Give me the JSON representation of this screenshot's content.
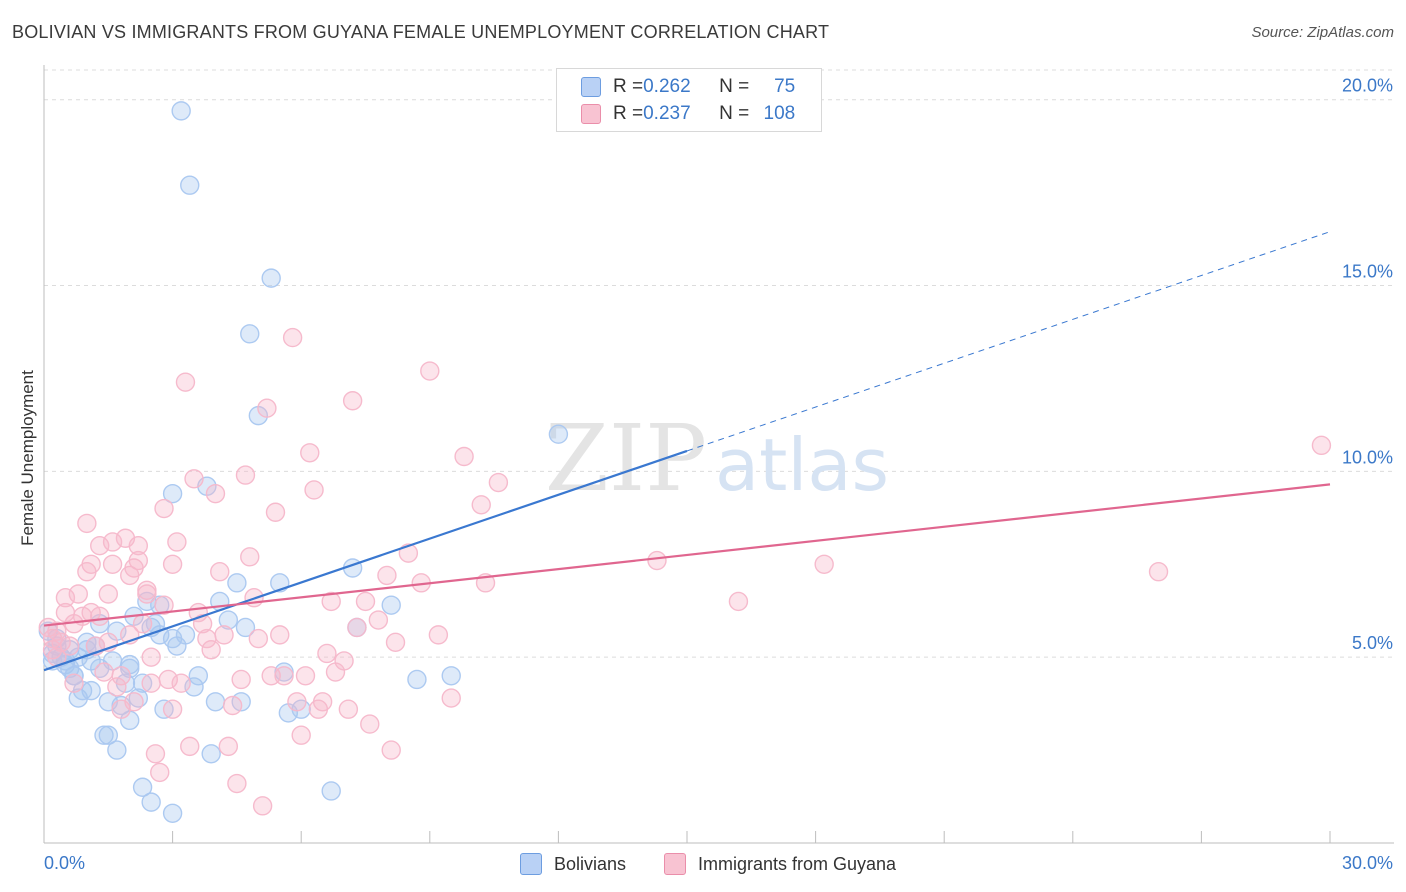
{
  "title": "BOLIVIAN VS IMMIGRANTS FROM GUYANA FEMALE UNEMPLOYMENT CORRELATION CHART",
  "source": "Source: ZipAtlas.com",
  "watermark": {
    "zip": "ZIP",
    "atlas": "atlas"
  },
  "legend_stats": [
    {
      "r_label": "R = ",
      "r_value": "0.262",
      "n_label": "N = ",
      "n_value": "75",
      "fill": "#b9d1f5",
      "stroke": "#6d9de0"
    },
    {
      "r_label": "R = ",
      "r_value": "0.237",
      "n_label": "N = ",
      "n_value": "108",
      "fill": "#f8c3d2",
      "stroke": "#ea8eaa"
    }
  ],
  "chart_data": {
    "type": "scatter",
    "title": "BOLIVIAN VS IMMIGRANTS FROM GUYANA FEMALE UNEMPLOYMENT CORRELATION CHART",
    "xlabel": "",
    "ylabel": "Female Unemployment",
    "xlim": [
      0,
      30
    ],
    "ylim": [
      0,
      20.8
    ],
    "x_tick_labels": [
      "0.0%",
      "30.0%"
    ],
    "y_ticks": [
      5,
      10,
      15,
      20
    ],
    "y_tick_labels": [
      "5.0%",
      "10.0%",
      "15.0%",
      "20.0%"
    ],
    "grid": true,
    "legend_position": "top-center",
    "series": [
      {
        "name": "Bolivians",
        "color": "#3a78d0",
        "fill": "#a9c7f0",
        "r": 0.262,
        "n": 75,
        "trend": {
          "x0": 0.0,
          "y0": 4.65,
          "x1": 15.0,
          "y1": 10.55,
          "dash_to_x": 30.0,
          "dash_to_y": 16.45
        },
        "points": [
          [
            0.1,
            5.7
          ],
          [
            0.2,
            5.1
          ],
          [
            0.2,
            4.9
          ],
          [
            0.3,
            5.5
          ],
          [
            0.3,
            5.3
          ],
          [
            0.4,
            5.0
          ],
          [
            0.5,
            4.9
          ],
          [
            0.5,
            4.8
          ],
          [
            0.6,
            5.2
          ],
          [
            0.6,
            4.7
          ],
          [
            0.7,
            4.5
          ],
          [
            0.7,
            4.5
          ],
          [
            0.8,
            5.0
          ],
          [
            0.8,
            3.9
          ],
          [
            0.9,
            4.1
          ],
          [
            1.0,
            5.4
          ],
          [
            1.0,
            5.2
          ],
          [
            1.1,
            4.9
          ],
          [
            1.1,
            4.1
          ],
          [
            1.2,
            5.3
          ],
          [
            1.3,
            5.9
          ],
          [
            1.3,
            4.7
          ],
          [
            1.4,
            2.9
          ],
          [
            1.5,
            3.8
          ],
          [
            1.5,
            2.9
          ],
          [
            1.6,
            4.9
          ],
          [
            1.7,
            5.7
          ],
          [
            1.7,
            2.5
          ],
          [
            1.8,
            3.7
          ],
          [
            1.9,
            4.3
          ],
          [
            2.0,
            4.8
          ],
          [
            2.0,
            4.7
          ],
          [
            2.0,
            3.3
          ],
          [
            2.1,
            6.1
          ],
          [
            2.2,
            3.9
          ],
          [
            2.3,
            4.3
          ],
          [
            2.3,
            1.5
          ],
          [
            2.4,
            6.5
          ],
          [
            2.5,
            5.8
          ],
          [
            2.6,
            5.9
          ],
          [
            2.7,
            5.6
          ],
          [
            2.7,
            6.4
          ],
          [
            2.8,
            3.6
          ],
          [
            3.0,
            5.5
          ],
          [
            3.0,
            9.4
          ],
          [
            3.1,
            5.3
          ],
          [
            3.2,
            19.7
          ],
          [
            3.3,
            5.6
          ],
          [
            3.4,
            17.7
          ],
          [
            3.5,
            4.2
          ],
          [
            3.6,
            4.5
          ],
          [
            3.8,
            9.6
          ],
          [
            3.9,
            2.4
          ],
          [
            4.0,
            3.8
          ],
          [
            4.1,
            6.5
          ],
          [
            4.3,
            6.0
          ],
          [
            4.5,
            7.0
          ],
          [
            4.6,
            3.8
          ],
          [
            4.7,
            5.8
          ],
          [
            4.8,
            13.7
          ],
          [
            5.0,
            11.5
          ],
          [
            5.3,
            15.2
          ],
          [
            5.5,
            7.0
          ],
          [
            5.6,
            4.6
          ],
          [
            5.7,
            3.5
          ],
          [
            6.0,
            3.6
          ],
          [
            6.7,
            1.4
          ],
          [
            7.2,
            7.4
          ],
          [
            7.3,
            5.8
          ],
          [
            8.1,
            6.4
          ],
          [
            8.7,
            4.4
          ],
          [
            9.5,
            4.5
          ],
          [
            12.0,
            11.0
          ],
          [
            2.5,
            1.1
          ],
          [
            3.0,
            0.8
          ]
        ]
      },
      {
        "name": "Immigrants from Guyana",
        "color": "#e0668f",
        "fill": "#f6b7ca",
        "r": 0.237,
        "n": 108,
        "trend": {
          "x0": 0.0,
          "y0": 5.85,
          "x1": 30.0,
          "y1": 9.65
        },
        "points": [
          [
            0.1,
            5.8
          ],
          [
            0.2,
            5.5
          ],
          [
            0.2,
            5.2
          ],
          [
            0.3,
            5.0
          ],
          [
            0.3,
            5.7
          ],
          [
            0.4,
            5.4
          ],
          [
            0.5,
            6.6
          ],
          [
            0.5,
            6.2
          ],
          [
            0.6,
            5.3
          ],
          [
            0.7,
            5.9
          ],
          [
            0.7,
            4.3
          ],
          [
            0.8,
            6.7
          ],
          [
            0.9,
            6.1
          ],
          [
            1.0,
            8.6
          ],
          [
            1.0,
            7.3
          ],
          [
            1.1,
            7.5
          ],
          [
            1.1,
            6.2
          ],
          [
            1.2,
            5.3
          ],
          [
            1.3,
            8.0
          ],
          [
            1.3,
            6.1
          ],
          [
            1.4,
            4.6
          ],
          [
            1.5,
            6.7
          ],
          [
            1.5,
            5.4
          ],
          [
            1.6,
            8.1
          ],
          [
            1.7,
            4.2
          ],
          [
            1.8,
            4.5
          ],
          [
            1.8,
            3.6
          ],
          [
            1.9,
            8.2
          ],
          [
            2.0,
            7.2
          ],
          [
            2.0,
            5.6
          ],
          [
            2.1,
            7.4
          ],
          [
            2.1,
            3.8
          ],
          [
            2.2,
            8.0
          ],
          [
            2.2,
            7.6
          ],
          [
            2.3,
            5.9
          ],
          [
            2.4,
            6.7
          ],
          [
            2.4,
            6.8
          ],
          [
            2.5,
            5.0
          ],
          [
            2.5,
            4.3
          ],
          [
            2.6,
            2.4
          ],
          [
            2.7,
            1.9
          ],
          [
            2.8,
            9.0
          ],
          [
            2.8,
            6.4
          ],
          [
            2.9,
            4.4
          ],
          [
            3.0,
            7.5
          ],
          [
            3.0,
            3.6
          ],
          [
            3.1,
            8.1
          ],
          [
            3.2,
            4.3
          ],
          [
            3.3,
            12.4
          ],
          [
            3.4,
            2.6
          ],
          [
            3.5,
            9.8
          ],
          [
            3.6,
            6.2
          ],
          [
            3.7,
            5.9
          ],
          [
            3.8,
            5.5
          ],
          [
            3.9,
            5.2
          ],
          [
            4.0,
            9.4
          ],
          [
            4.1,
            7.3
          ],
          [
            4.2,
            5.6
          ],
          [
            4.3,
            2.6
          ],
          [
            4.4,
            3.7
          ],
          [
            4.5,
            1.6
          ],
          [
            4.6,
            4.4
          ],
          [
            4.7,
            9.9
          ],
          [
            4.8,
            7.7
          ],
          [
            4.9,
            6.6
          ],
          [
            5.0,
            5.5
          ],
          [
            5.1,
            1.0
          ],
          [
            5.2,
            11.7
          ],
          [
            5.3,
            4.5
          ],
          [
            5.4,
            8.9
          ],
          [
            5.5,
            5.6
          ],
          [
            5.6,
            4.5
          ],
          [
            5.8,
            13.6
          ],
          [
            5.9,
            3.8
          ],
          [
            6.0,
            2.9
          ],
          [
            6.1,
            4.5
          ],
          [
            6.2,
            10.5
          ],
          [
            6.3,
            9.5
          ],
          [
            6.4,
            3.6
          ],
          [
            6.5,
            3.8
          ],
          [
            6.6,
            5.1
          ],
          [
            6.7,
            6.5
          ],
          [
            6.8,
            4.6
          ],
          [
            7.0,
            4.9
          ],
          [
            7.1,
            3.6
          ],
          [
            7.2,
            11.9
          ],
          [
            7.3,
            5.8
          ],
          [
            7.5,
            6.5
          ],
          [
            7.6,
            3.2
          ],
          [
            7.8,
            6.0
          ],
          [
            8.0,
            7.2
          ],
          [
            8.1,
            2.5
          ],
          [
            8.2,
            5.4
          ],
          [
            8.5,
            7.8
          ],
          [
            8.8,
            7.0
          ],
          [
            9.0,
            12.7
          ],
          [
            9.2,
            5.6
          ],
          [
            9.5,
            3.9
          ],
          [
            9.8,
            10.4
          ],
          [
            10.2,
            9.1
          ],
          [
            10.3,
            7.0
          ],
          [
            10.6,
            9.7
          ],
          [
            14.3,
            7.6
          ],
          [
            16.2,
            6.5
          ],
          [
            18.2,
            7.5
          ],
          [
            26.0,
            7.3
          ],
          [
            29.8,
            10.7
          ],
          [
            1.6,
            7.5
          ]
        ]
      }
    ]
  }
}
